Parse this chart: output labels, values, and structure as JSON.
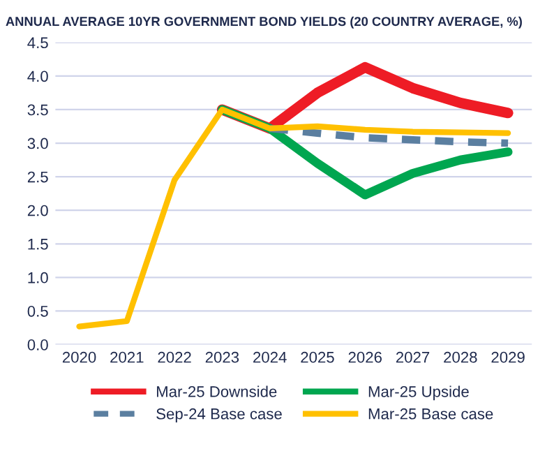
{
  "chart_data": {
    "type": "line",
    "title": "ANNUAL AVERAGE 10YR GOVERNMENT BOND YIELDS (20 COUNTRY AVERAGE, %)",
    "categories": [
      "2020",
      "2021",
      "2022",
      "2023",
      "2024",
      "2025",
      "2026",
      "2027",
      "2028",
      "2029"
    ],
    "series": [
      {
        "name": "Mar-25 Downside",
        "color": "#ee1c25",
        "values": [
          null,
          null,
          null,
          3.5,
          3.22,
          3.75,
          4.13,
          3.82,
          3.6,
          3.45
        ]
      },
      {
        "name": "Mar-25 Upside",
        "color": "#00a650",
        "values": [
          null,
          null,
          null,
          3.5,
          3.22,
          2.7,
          2.23,
          2.55,
          2.75,
          2.87
        ]
      },
      {
        "name": "Sep-24 Base case",
        "color": "#5b7fa0",
        "line_style": "dashed",
        "values": [
          null,
          null,
          null,
          null,
          3.22,
          3.15,
          3.08,
          3.05,
          3.02,
          3.0
        ]
      },
      {
        "name": "Mar-25 Base case",
        "color": "#ffc000",
        "values": [
          0.27,
          0.35,
          2.45,
          3.5,
          3.22,
          3.25,
          3.2,
          3.17,
          3.16,
          3.15
        ]
      }
    ],
    "ylim": [
      0,
      4.5
    ],
    "yticks": [
      {
        "value": 0,
        "label": "0.0"
      },
      0.5,
      {
        "value": 1,
        "label": "1.0"
      },
      1.5,
      {
        "value": 2,
        "label": "2.0"
      },
      2.5,
      {
        "value": 3,
        "label": "3.0"
      },
      3.5,
      {
        "value": 4,
        "label": "4.0"
      },
      4.5
    ],
    "grid": "y",
    "legend": "bottom",
    "marker": "none",
    "line_style": "solid"
  }
}
